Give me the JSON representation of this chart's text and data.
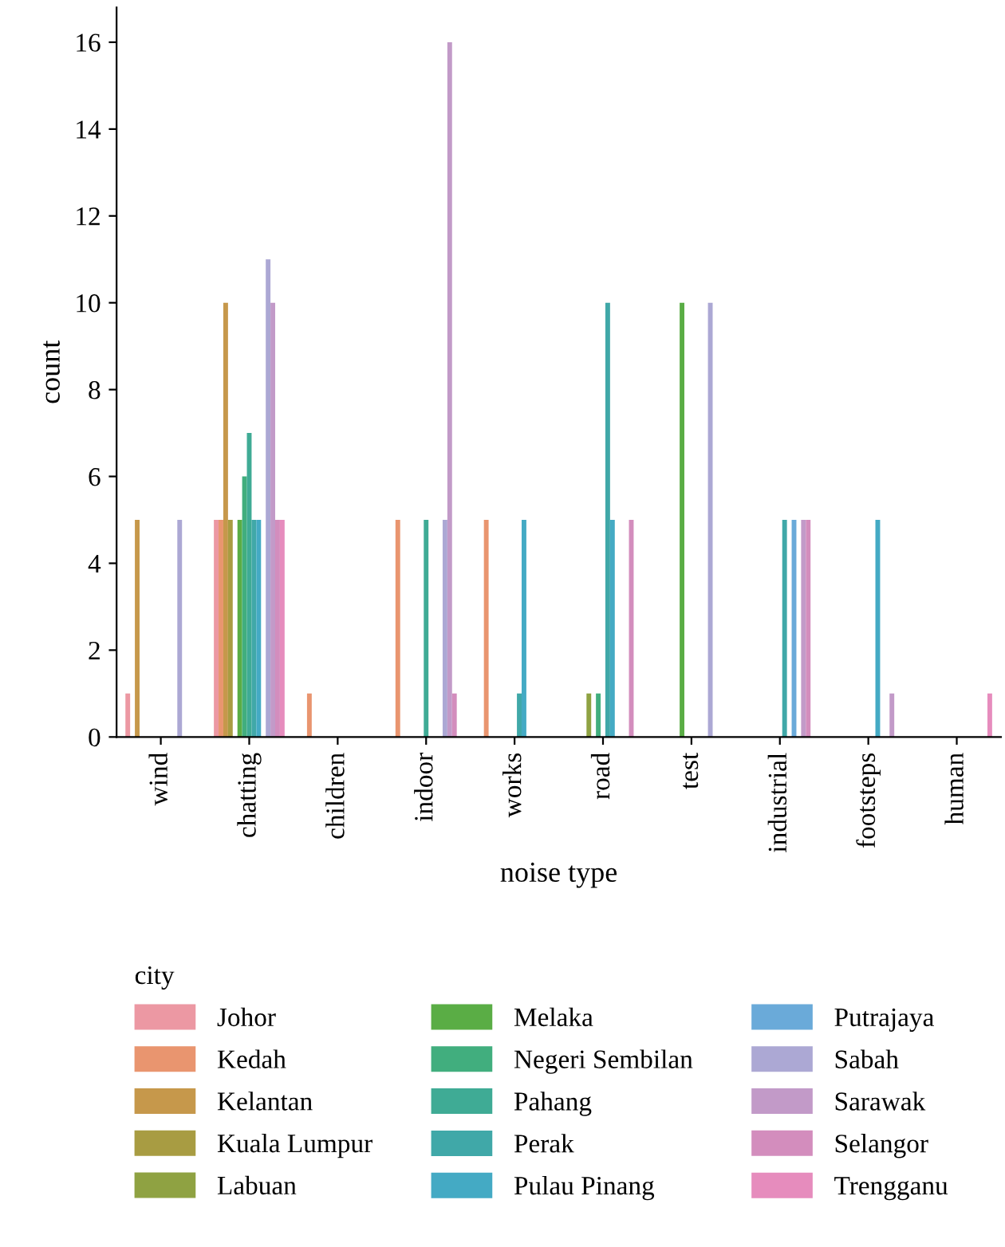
{
  "chart_data": {
    "type": "bar",
    "xlabel": "noise type",
    "ylabel": "count",
    "legend_title": "city",
    "legend": "bottom",
    "grid": false,
    "categories": [
      "wind",
      "chatting",
      "children",
      "indoor",
      "works",
      "road",
      "test",
      "industrial",
      "footsteps",
      "human"
    ],
    "ylim": [
      0,
      16.8
    ],
    "yticks": [
      0,
      2,
      4,
      6,
      8,
      10,
      12,
      14,
      16
    ],
    "series": [
      {
        "name": "Johor",
        "color": "#ec98a3",
        "values": [
          1,
          5,
          null,
          null,
          null,
          null,
          null,
          null,
          null,
          null
        ]
      },
      {
        "name": "Kedah",
        "color": "#e9956f",
        "values": [
          null,
          5,
          1,
          5,
          5,
          null,
          null,
          null,
          null,
          null
        ]
      },
      {
        "name": "Kelantan",
        "color": "#c6984b",
        "values": [
          5,
          10,
          null,
          null,
          null,
          null,
          null,
          null,
          null,
          null
        ]
      },
      {
        "name": "Kuala Lumpur",
        "color": "#a89c42",
        "values": [
          null,
          5,
          null,
          null,
          null,
          null,
          null,
          null,
          null,
          null
        ]
      },
      {
        "name": "Labuan",
        "color": "#8fa242",
        "values": [
          null,
          null,
          null,
          null,
          null,
          1,
          null,
          null,
          null,
          null
        ]
      },
      {
        "name": "Melaka",
        "color": "#5aad45",
        "values": [
          null,
          5,
          null,
          null,
          null,
          null,
          10,
          null,
          null,
          null
        ]
      },
      {
        "name": "Negeri Sembilan",
        "color": "#41ae7e",
        "values": [
          null,
          6,
          null,
          null,
          null,
          1,
          null,
          null,
          null,
          null
        ]
      },
      {
        "name": "Pahang",
        "color": "#3fab95",
        "values": [
          null,
          7,
          null,
          5,
          null,
          null,
          null,
          null,
          null,
          null
        ]
      },
      {
        "name": "Perak",
        "color": "#40a8a8",
        "values": [
          null,
          5,
          null,
          null,
          1,
          10,
          null,
          5,
          null,
          null
        ]
      },
      {
        "name": "Pulau Pinang",
        "color": "#44aac4",
        "values": [
          null,
          5,
          null,
          null,
          5,
          5,
          null,
          null,
          5,
          null
        ]
      },
      {
        "name": "Putrajaya",
        "color": "#6aaad9",
        "values": [
          null,
          null,
          null,
          null,
          null,
          null,
          null,
          5,
          null,
          null
        ]
      },
      {
        "name": "Sabah",
        "color": "#aca8d4",
        "values": [
          5,
          11,
          null,
          5,
          null,
          null,
          10,
          null,
          null,
          null
        ]
      },
      {
        "name": "Sarawak",
        "color": "#c29ac8",
        "values": [
          null,
          10,
          null,
          16,
          null,
          null,
          null,
          5,
          1,
          null
        ]
      },
      {
        "name": "Selangor",
        "color": "#d38dbd",
        "values": [
          null,
          5,
          null,
          1,
          null,
          5,
          null,
          5,
          null,
          null
        ]
      },
      {
        "name": "Trengganu",
        "color": "#e68cbd",
        "values": [
          null,
          5,
          null,
          null,
          null,
          null,
          null,
          null,
          null,
          1
        ]
      }
    ]
  }
}
